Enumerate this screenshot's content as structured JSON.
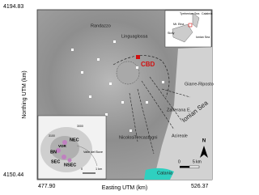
{
  "axes": {
    "y_top": "4194.83",
    "y_bottom": "4150.44",
    "x_left": "477.90",
    "x_right": "526.37",
    "y_label": "Northing UTM (km)",
    "x_label": "Easting UTM (km)"
  },
  "map": {
    "places": [
      "Randazzo",
      "Linguaglossa",
      "Giarre-Riposto",
      "Zafferana E.",
      "Acireale",
      "Nicolosi",
      "Trecastagni",
      "Catania"
    ],
    "sea": "Ionian Sea",
    "site": "CBD"
  },
  "location_inset": {
    "labels": [
      "Tyrrhenian Sea",
      "Calabria",
      "Mt. Etna",
      "Sicily",
      "Ionian Sea"
    ]
  },
  "summit_inset": {
    "labels": [
      "NEC",
      "VOR",
      "BN",
      "SEC",
      "NSEC",
      "Valle del Bove"
    ],
    "contours": [
      "3000",
      "3100"
    ],
    "scale": [
      "0",
      "1 km"
    ]
  },
  "scale_bar": [
    "0",
    "5 km"
  ],
  "north": "N"
}
